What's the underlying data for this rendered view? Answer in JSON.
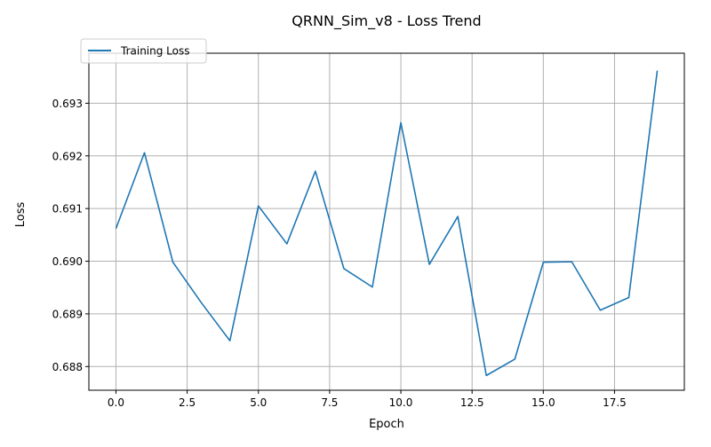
{
  "chart_data": {
    "type": "line",
    "title": "QRNN_Sim_v8 - Loss Trend",
    "xlabel": "Epoch",
    "ylabel": "Loss",
    "xlim": [
      -0.95,
      19.95
    ],
    "ylim": [
      0.68755,
      0.69395
    ],
    "x_ticks": [
      0.0,
      2.5,
      5.0,
      7.5,
      10.0,
      12.5,
      15.0,
      17.5
    ],
    "x_tick_labels": [
      "0.0",
      "2.5",
      "5.0",
      "7.5",
      "10.0",
      "12.5",
      "15.0",
      "17.5"
    ],
    "y_ticks": [
      0.688,
      0.689,
      0.69,
      0.691,
      0.692,
      0.693
    ],
    "y_tick_labels": [
      "0.688",
      "0.689",
      "0.690",
      "0.691",
      "0.692",
      "0.693"
    ],
    "grid": true,
    "legend_position": "top-left",
    "series": [
      {
        "name": "Training Loss",
        "color": "#1f77b4",
        "x": [
          0,
          1,
          2,
          3,
          4,
          5,
          6,
          7,
          8,
          9,
          10,
          11,
          12,
          13,
          14,
          15,
          16,
          17,
          18,
          19
        ],
        "y": [
          0.69062,
          0.69206,
          0.68998,
          0.68921,
          0.68849,
          0.69105,
          0.69033,
          0.69171,
          0.68986,
          0.68951,
          0.69263,
          0.68994,
          0.69085,
          0.68783,
          0.68814,
          0.68998,
          0.68999,
          0.68907,
          0.68931,
          0.69362
        ]
      }
    ]
  }
}
